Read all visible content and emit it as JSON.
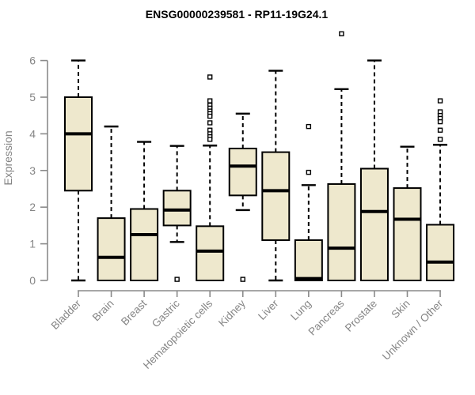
{
  "chart_data": {
    "type": "boxplot",
    "title": "ENSG00000239581 - RP11-19G24.1",
    "ylabel": "Expression",
    "xlabel": "",
    "ylim": [
      0,
      6
    ],
    "yticks": [
      0,
      1,
      2,
      3,
      4,
      5,
      6
    ],
    "grid": false,
    "legend": "none",
    "categories": [
      "Bladder",
      "Brain",
      "Breast",
      "Gastric",
      "Hematopoietic cells",
      "Kidney",
      "Liver",
      "Lung",
      "Pancreas",
      "Prostate",
      "Skin",
      "Unknown / Other"
    ],
    "series": [
      {
        "category": "Bladder",
        "whisker_low": 0,
        "q1": 2.45,
        "median": 4.0,
        "q3": 5.0,
        "whisker_high": 6.0,
        "outliers": []
      },
      {
        "category": "Brain",
        "whisker_low": 0,
        "q1": 0,
        "median": 0.63,
        "q3": 1.7,
        "whisker_high": 4.2,
        "outliers": []
      },
      {
        "category": "Breast",
        "whisker_low": 0,
        "q1": 0,
        "median": 1.25,
        "q3": 1.95,
        "whisker_high": 3.78,
        "outliers": []
      },
      {
        "category": "Gastric",
        "whisker_low": 1.05,
        "q1": 1.5,
        "median": 1.92,
        "q3": 2.45,
        "whisker_high": 3.67,
        "outliers": [
          0.03
        ]
      },
      {
        "category": "Hematopoietic cells",
        "whisker_low": 0,
        "q1": 0,
        "median": 0.8,
        "q3": 1.48,
        "whisker_high": 3.68,
        "outliers": [
          5.55,
          4.9,
          4.78,
          4.7,
          4.62,
          4.55,
          4.48,
          4.3,
          4.1,
          4.0,
          3.92,
          3.85
        ]
      },
      {
        "category": "Kidney",
        "whisker_low": 1.92,
        "q1": 2.32,
        "median": 3.12,
        "q3": 3.6,
        "whisker_high": 4.55,
        "outliers": [
          0.03
        ]
      },
      {
        "category": "Liver",
        "whisker_low": 0,
        "q1": 1.1,
        "median": 2.45,
        "q3": 3.5,
        "whisker_high": 5.72,
        "outliers": []
      },
      {
        "category": "Lung",
        "whisker_low": 0,
        "q1": 0,
        "median": 0.05,
        "q3": 1.1,
        "whisker_high": 2.6,
        "outliers": [
          4.2,
          2.95
        ]
      },
      {
        "category": "Pancreas",
        "whisker_low": 0,
        "q1": 0,
        "median": 0.88,
        "q3": 2.63,
        "whisker_high": 5.22,
        "outliers": [
          6.73
        ]
      },
      {
        "category": "Prostate",
        "whisker_low": 0,
        "q1": 0,
        "median": 1.88,
        "q3": 3.05,
        "whisker_high": 6.0,
        "outliers": []
      },
      {
        "category": "Skin",
        "whisker_low": 0,
        "q1": 0,
        "median": 1.67,
        "q3": 2.52,
        "whisker_high": 3.65,
        "outliers": []
      },
      {
        "category": "Unknown / Other",
        "whisker_low": 0,
        "q1": 0,
        "median": 0.5,
        "q3": 1.52,
        "whisker_high": 3.7,
        "outliers": [
          4.9,
          4.6,
          4.5,
          4.42,
          4.33,
          4.1,
          3.85
        ]
      }
    ],
    "colors": {
      "box_fill": "#EEE8CD",
      "box_stroke": "#000000",
      "median": "#000000",
      "outlier_fill": "#ffffff",
      "axis": "#8a8a8a",
      "text": "#858585",
      "title": "#000000",
      "background": "#ffffff"
    }
  }
}
